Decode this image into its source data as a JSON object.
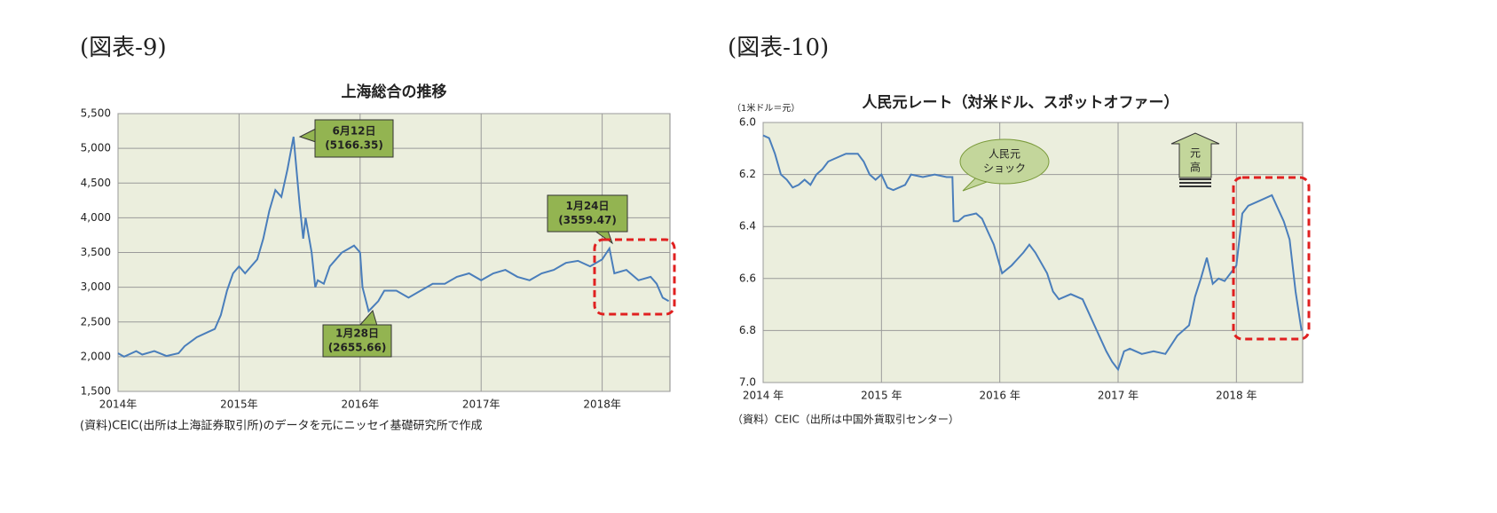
{
  "chart_data": [
    {
      "type": "line",
      "figure_label": "(図表-9)",
      "title": "上海総合の推移",
      "source": "(資料)CEIC(出所は上海証券取引所)のデータを元にニッセイ基礎研究所で作成",
      "color": "#4a7ebb",
      "grid": true,
      "x": [
        2014.0,
        2014.05,
        2014.15,
        2014.2,
        2014.3,
        2014.4,
        2014.5,
        2014.55,
        2014.65,
        2014.75,
        2014.8,
        2014.85,
        2014.9,
        2014.95,
        2015.0,
        2015.05,
        2015.1,
        2015.15,
        2015.2,
        2015.25,
        2015.3,
        2015.35,
        2015.4,
        2015.45,
        2015.5,
        2015.53,
        2015.55,
        2015.6,
        2015.63,
        2015.65,
        2015.7,
        2015.75,
        2015.8,
        2015.85,
        2015.9,
        2015.95,
        2016.0,
        2016.02,
        2016.07,
        2016.15,
        2016.2,
        2016.3,
        2016.4,
        2016.5,
        2016.6,
        2016.7,
        2016.8,
        2016.9,
        2017.0,
        2017.1,
        2017.2,
        2017.3,
        2017.4,
        2017.5,
        2017.6,
        2017.7,
        2017.8,
        2017.9,
        2018.0,
        2018.06,
        2018.1,
        2018.2,
        2018.3,
        2018.4,
        2018.45,
        2018.5,
        2018.55
      ],
      "values": [
        2050,
        2000,
        2080,
        2030,
        2080,
        2010,
        2050,
        2150,
        2280,
        2360,
        2400,
        2600,
        2950,
        3200,
        3300,
        3200,
        3300,
        3400,
        3700,
        4100,
        4400,
        4300,
        4700,
        5166.35,
        4200,
        3700,
        4000,
        3500,
        3000,
        3100,
        3050,
        3300,
        3400,
        3500,
        3550,
        3600,
        3500,
        3000,
        2655.66,
        2800,
        2950,
        2950,
        2850,
        2950,
        3050,
        3050,
        3150,
        3200,
        3100,
        3200,
        3250,
        3150,
        3100,
        3200,
        3250,
        3350,
        3380,
        3300,
        3400,
        3559.47,
        3200,
        3250,
        3100,
        3150,
        3050,
        2850,
        2800
      ],
      "xlim": [
        2014,
        2018.56
      ],
      "xticks": [
        {
          "value": 2014,
          "label": "2014年"
        },
        {
          "value": 2015,
          "label": "2015年"
        },
        {
          "value": 2016,
          "label": "2016年"
        },
        {
          "value": 2017,
          "label": "2017年"
        },
        {
          "value": 2018,
          "label": "2018年"
        }
      ],
      "ylim": [
        1500,
        5500
      ],
      "yticks": [
        {
          "value": 1500,
          "label": "1,500"
        },
        {
          "value": 2000,
          "label": "2,000"
        },
        {
          "value": 2500,
          "label": "2,500"
        },
        {
          "value": 3000,
          "label": "3,000"
        },
        {
          "value": 3500,
          "label": "3,500"
        },
        {
          "value": 4000,
          "label": "4,000"
        },
        {
          "value": 4500,
          "label": "4,500"
        },
        {
          "value": 5000,
          "label": "5,000"
        },
        {
          "value": 5500,
          "label": "5,500"
        }
      ],
      "annotations": [
        {
          "lines": [
            "6月12日",
            "(5166.35)"
          ]
        },
        {
          "lines": [
            "1月28日",
            "(2655.66)"
          ]
        },
        {
          "lines": [
            "1月24日",
            "(3559.47)"
          ]
        }
      ]
    },
    {
      "type": "line",
      "figure_label": "(図表-10)",
      "title": "人民元レート（対米ドル、スポットオファー）",
      "y_unit": "（1米ドル＝元）",
      "source": "（資料）CEIC（出所は中国外貨取引センター）",
      "color": "#4a7ebb",
      "grid": true,
      "x": [
        2014.0,
        2014.05,
        2014.1,
        2014.15,
        2014.2,
        2014.25,
        2014.3,
        2014.35,
        2014.4,
        2014.45,
        2014.5,
        2014.55,
        2014.6,
        2014.7,
        2014.8,
        2014.85,
        2014.9,
        2014.95,
        2015.0,
        2015.05,
        2015.1,
        2015.2,
        2015.25,
        2015.35,
        2015.45,
        2015.55,
        2015.6,
        2015.61,
        2015.65,
        2015.7,
        2015.8,
        2015.85,
        2015.9,
        2015.95,
        2016.0,
        2016.02,
        2016.1,
        2016.2,
        2016.25,
        2016.3,
        2016.4,
        2016.45,
        2016.5,
        2016.6,
        2016.7,
        2016.8,
        2016.9,
        2016.95,
        2017.0,
        2017.05,
        2017.1,
        2017.2,
        2017.3,
        2017.4,
        2017.5,
        2017.6,
        2017.65,
        2017.7,
        2017.75,
        2017.8,
        2017.85,
        2017.9,
        2018.0,
        2018.05,
        2018.1,
        2018.2,
        2018.3,
        2018.35,
        2018.4,
        2018.45,
        2018.5,
        2018.55
      ],
      "values": [
        6.05,
        6.06,
        6.12,
        6.2,
        6.22,
        6.25,
        6.24,
        6.22,
        6.24,
        6.2,
        6.18,
        6.15,
        6.14,
        6.12,
        6.12,
        6.15,
        6.2,
        6.22,
        6.2,
        6.25,
        6.26,
        6.24,
        6.2,
        6.21,
        6.2,
        6.21,
        6.21,
        6.38,
        6.38,
        6.36,
        6.35,
        6.37,
        6.42,
        6.47,
        6.55,
        6.58,
        6.55,
        6.5,
        6.47,
        6.5,
        6.58,
        6.65,
        6.68,
        6.66,
        6.68,
        6.78,
        6.88,
        6.92,
        6.95,
        6.88,
        6.87,
        6.89,
        6.88,
        6.89,
        6.82,
        6.78,
        6.67,
        6.6,
        6.52,
        6.62,
        6.6,
        6.61,
        6.55,
        6.35,
        6.32,
        6.3,
        6.28,
        6.33,
        6.38,
        6.45,
        6.65,
        6.8
      ],
      "xlim": [
        2014,
        2018.56
      ],
      "xticks": [
        {
          "value": 2014,
          "label": "2014 年"
        },
        {
          "value": 2015,
          "label": "2015 年"
        },
        {
          "value": 2016,
          "label": "2016 年"
        },
        {
          "value": 2017,
          "label": "2017 年"
        },
        {
          "value": 2018,
          "label": "2018 年"
        }
      ],
      "ylim": [
        7.0,
        6.0
      ],
      "yticks": [
        {
          "value": 6,
          "label": "6.0"
        },
        {
          "value": 6.2,
          "label": "6.2"
        },
        {
          "value": 6.4,
          "label": "6.4"
        },
        {
          "value": 6.6,
          "label": "6.6"
        },
        {
          "value": 6.8,
          "label": "6.8"
        },
        {
          "value": 7,
          "label": "7.0"
        }
      ],
      "annotations": [
        {
          "lines": [
            "人民元",
            "ショック"
          ]
        },
        {
          "lines": [
            "元",
            "高"
          ]
        }
      ]
    }
  ]
}
